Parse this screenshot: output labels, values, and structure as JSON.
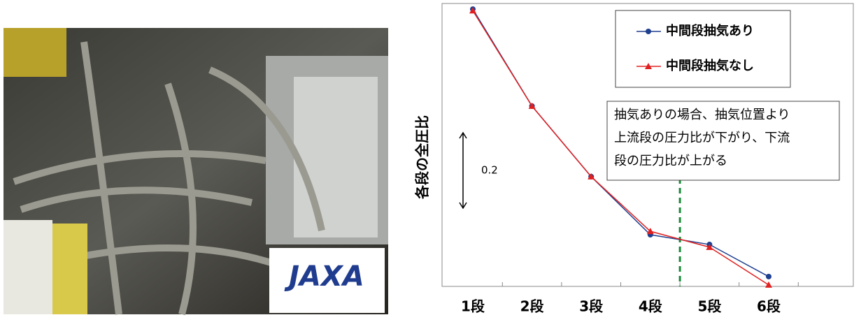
{
  "photo": {
    "logo": "JAXA"
  },
  "chart_data": {
    "type": "line",
    "y_label": "各段の全圧比",
    "categories": [
      "1段",
      "2段",
      "3段",
      "4段",
      "5段",
      "6段"
    ],
    "series": [
      {
        "name": "中間段抽気あり",
        "color": "#1f3f8f",
        "marker": "circle",
        "values": [
          0.735,
          0.478,
          0.291,
          0.137,
          0.111,
          0.026
        ]
      },
      {
        "name": "中間段抽気なし",
        "color": "#e02020",
        "marker": "triangle",
        "values": [
          0.731,
          0.478,
          0.291,
          0.146,
          0.104,
          0.004
        ]
      }
    ],
    "ylim": [
      0,
      0.75
    ],
    "scale_bar": 0.2,
    "annotation": [
      "抽気ありの場合、抽気位置より",
      "上流段の圧力比が下がり、下流",
      "段の圧力比が上がる"
    ],
    "legend": "upper right"
  }
}
